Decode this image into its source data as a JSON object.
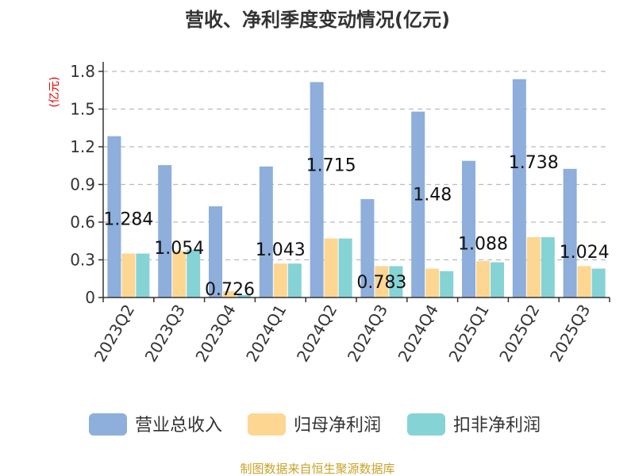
{
  "chart_data": {
    "type": "bar",
    "title": "营收、净利季度变动情况(亿元)",
    "unit_label": "(亿元)",
    "categories": [
      "2023Q2",
      "2023Q3",
      "2023Q4",
      "2024Q1",
      "2024Q2",
      "2024Q3",
      "2024Q4",
      "2025Q1",
      "2025Q2",
      "2025Q3"
    ],
    "series": [
      {
        "name": "营业总收入",
        "color": "#8eaedb",
        "values": [
          1.284,
          1.054,
          0.726,
          1.043,
          1.715,
          0.783,
          1.48,
          1.088,
          1.738,
          1.024
        ]
      },
      {
        "name": "归母净利润",
        "color": "#fdd692",
        "values": [
          0.35,
          0.37,
          0.05,
          0.27,
          0.47,
          0.25,
          0.23,
          0.29,
          0.48,
          0.25
        ]
      },
      {
        "name": "扣非净利润",
        "color": "#86d3d6",
        "values": [
          0.35,
          0.38,
          0.02,
          0.27,
          0.47,
          0.25,
          0.21,
          0.28,
          0.48,
          0.23
        ]
      }
    ],
    "data_labels": [
      "1.284",
      "1.054",
      "0.726",
      "1.043",
      "1.715",
      "0.783",
      "1.48",
      "1.088",
      "1.738",
      "1.024"
    ],
    "yticks": [
      "0",
      "0.3",
      "0.6",
      "0.9",
      "1.2",
      "1.5",
      "1.8"
    ],
    "ylim": [
      0,
      1.8
    ],
    "grid": true,
    "legend_position": "bottom"
  },
  "source_text": "制图数据来自恒生聚源数据库"
}
